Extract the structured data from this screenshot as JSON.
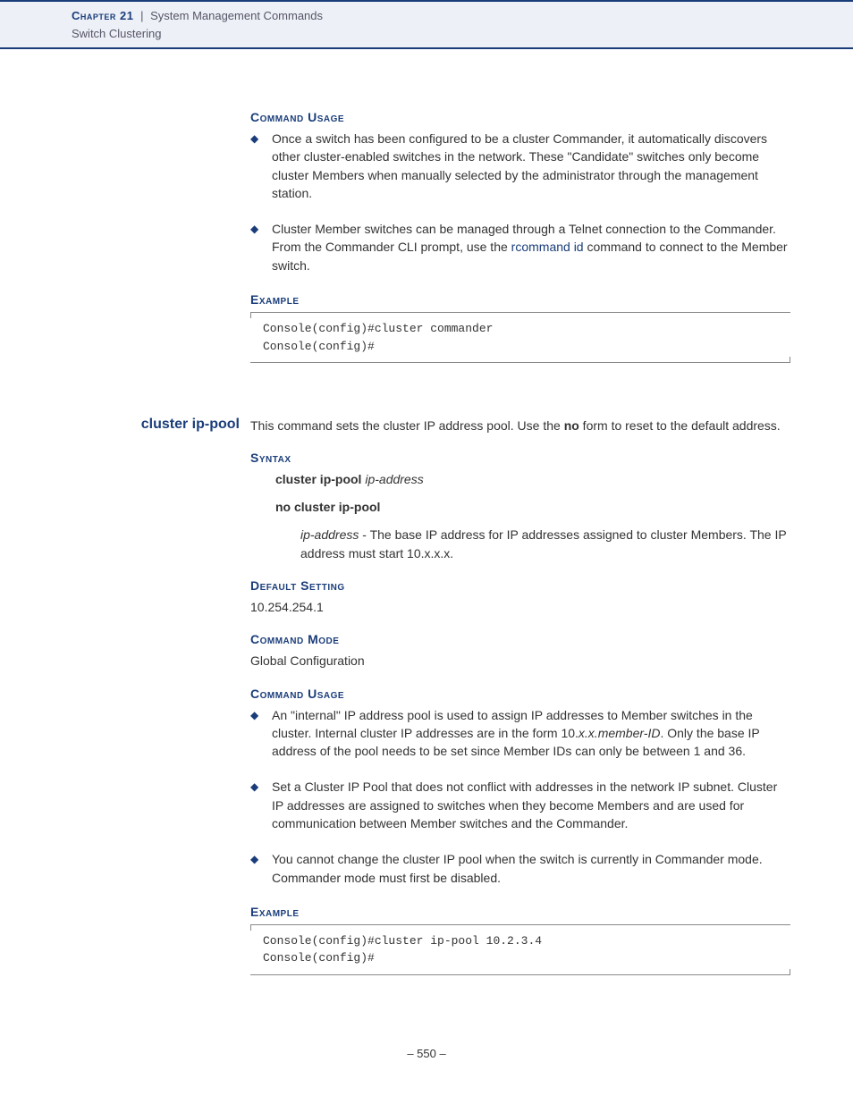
{
  "header": {
    "chapter": "Chapter 21",
    "separator": "|",
    "title": "System Management Commands",
    "subtitle": "Switch Clustering"
  },
  "section1": {
    "usage_heading": "Command Usage",
    "bullets": [
      {
        "text": "Once a switch has been configured to be a cluster Commander, it automatically discovers other cluster-enabled switches in the network. These \"Candidate\" switches only become cluster Members when manually selected by the administrator through the management station."
      },
      {
        "text_pre": "Cluster Member switches can be managed through a Telnet connection to the Commander. From the Commander CLI prompt, use the ",
        "link": "rcommand id",
        "text_post": " command to connect to the Member switch."
      }
    ],
    "example_heading": "Example",
    "example_code": "Console(config)#cluster commander\nConsole(config)#"
  },
  "command": {
    "name": "cluster ip-pool",
    "desc_pre": "This command sets the cluster IP address pool. Use the ",
    "desc_bold": "no",
    "desc_post": " form to reset to the default address.",
    "syntax_heading": "Syntax",
    "syntax_lines": [
      {
        "cmd": "cluster ip-pool",
        "arg": "ip-address"
      },
      {
        "cmd": "no cluster ip-pool",
        "arg": ""
      }
    ],
    "arg_name": "ip-address",
    "arg_desc": " - The base IP address for IP addresses assigned to cluster Members. The IP address must start 10.x.x.x.",
    "default_heading": "Default Setting",
    "default_value": "10.254.254.1",
    "mode_heading": "Command Mode",
    "mode_value": "Global Configuration",
    "usage_heading": "Command Usage",
    "usage_bullets": [
      {
        "pre": "An \"internal\" IP address pool is used to assign IP addresses to Member switches in the cluster. Internal cluster IP addresses are in the form 10.",
        "italic": "x.x.member-ID",
        "post": ". Only the base IP address of the pool needs to be set since Member IDs can only be between 1 and 36."
      },
      {
        "pre": "Set a Cluster IP Pool that does not conflict with addresses in the network IP subnet. Cluster IP addresses are assigned to switches when they become Members and are used for communication between Member switches and the Commander.",
        "italic": "",
        "post": ""
      },
      {
        "pre": "You cannot change the cluster IP pool when the switch is currently in Commander mode. Commander mode must first be disabled.",
        "italic": "",
        "post": ""
      }
    ],
    "example_heading": "Example",
    "example_code": "Console(config)#cluster ip-pool 10.2.3.4\nConsole(config)#"
  },
  "footer": {
    "page": "–  550  –"
  },
  "colors": {
    "brand": "#1a3d7a",
    "header_bg": "#eef0f7",
    "text": "#333333",
    "rule": "#888888"
  }
}
